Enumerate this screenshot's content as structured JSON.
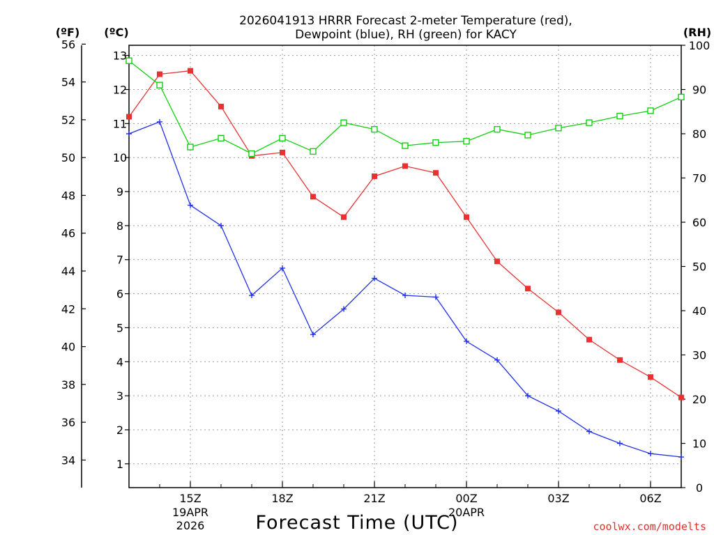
{
  "chart_data": {
    "type": "line",
    "title_line1": "2026041913 HRRR Forecast 2-meter Temperature (red),",
    "title_line2": "Dewpoint (blue), RH (green) for KACY",
    "xlabel": "Forecast Time (UTC)",
    "credit": "coolwx.com/modelts",
    "unit_f": "(ºF)",
    "unit_c": "(ºC)",
    "unit_rh": "(RH)",
    "x_hours": [
      13,
      14,
      15,
      16,
      17,
      18,
      19,
      20,
      21,
      22,
      23,
      24,
      25,
      26,
      27,
      28,
      29,
      30,
      31
    ],
    "xlim": [
      13,
      31
    ],
    "x_ticks": [
      {
        "hour": 15,
        "label": "15Z",
        "date": "19APR",
        "year": "2026"
      },
      {
        "hour": 18,
        "label": "18Z"
      },
      {
        "hour": 21,
        "label": "21Z"
      },
      {
        "hour": 24,
        "label": "00Z",
        "date": "20APR"
      },
      {
        "hour": 27,
        "label": "03Z"
      },
      {
        "hour": 30,
        "label": "06Z"
      }
    ],
    "celsius_axis": {
      "lim": [
        0.3,
        13.3
      ],
      "ticks": [
        "1",
        "2",
        "3",
        "4",
        "5",
        "6",
        "7",
        "8",
        "9",
        "10",
        "11",
        "12",
        "13"
      ]
    },
    "fahrenheit_axis": {
      "ticks": [
        "34",
        "36",
        "38",
        "40",
        "42",
        "44",
        "46",
        "48",
        "50",
        "52",
        "54",
        "56"
      ]
    },
    "rh_axis": {
      "lim": [
        0,
        100
      ],
      "ticks": [
        "0",
        "10",
        "20",
        "30",
        "40",
        "50",
        "60",
        "70",
        "80",
        "90",
        "100"
      ]
    },
    "series": [
      {
        "name": "Temperature",
        "color": "#e83232",
        "axis": "C",
        "marker": "square-filled",
        "values": [
          11.2,
          12.45,
          12.55,
          11.5,
          10.05,
          10.15,
          8.85,
          8.25,
          9.45,
          9.75,
          9.55,
          8.25,
          6.95,
          6.15,
          5.45,
          4.65,
          4.05,
          3.55,
          2.95
        ]
      },
      {
        "name": "Dewpoint",
        "color": "#2030e8",
        "axis": "C",
        "marker": "plus",
        "values": [
          10.7,
          11.05,
          8.6,
          8.0,
          5.95,
          6.75,
          4.8,
          5.55,
          6.45,
          5.95,
          5.9,
          4.6,
          4.05,
          3.0,
          2.55,
          1.95,
          1.6,
          1.3,
          1.2
        ]
      },
      {
        "name": "RH",
        "color": "#10d010",
        "axis": "RH",
        "marker": "square-open",
        "values": [
          96.5,
          91,
          77,
          79,
          75.5,
          79,
          76,
          82.5,
          81,
          77.3,
          78,
          78.3,
          81,
          79.7,
          81.3,
          82.5,
          84,
          85.2,
          88.3
        ]
      }
    ]
  }
}
